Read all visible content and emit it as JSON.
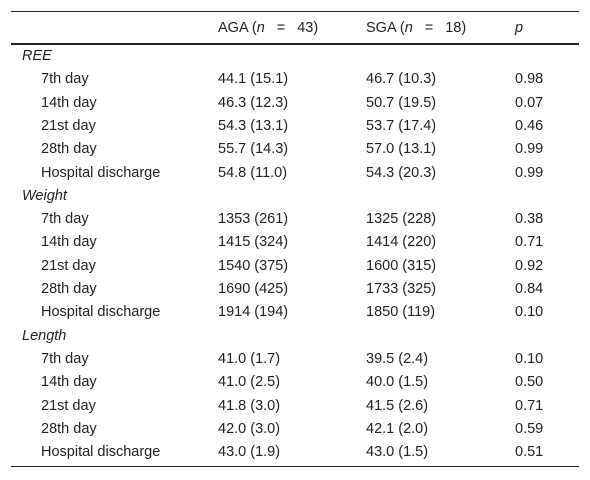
{
  "header": {
    "col1_prefix": "AGA (",
    "col1_n": "n",
    "col1_eq": "=",
    "col1_val": "43)",
    "col2_prefix": "SGA (",
    "col2_n": "n",
    "col2_eq": "=",
    "col2_val": "18)",
    "col3": "p"
  },
  "sections": [
    {
      "title": "REE",
      "rows": [
        {
          "label": "7th day",
          "aga": "44.1 (15.1)",
          "sga": "46.7 (10.3)",
          "p": "0.98"
        },
        {
          "label": "14th day",
          "aga": "46.3 (12.3)",
          "sga": "50.7 (19.5)",
          "p": "0.07"
        },
        {
          "label": "21st day",
          "aga": "54.3 (13.1)",
          "sga": "53.7 (17.4)",
          "p": "0.46"
        },
        {
          "label": "28th day",
          "aga": "55.7 (14.3)",
          "sga": "57.0 (13.1)",
          "p": "0.99"
        },
        {
          "label": "Hospital discharge",
          "aga": "54.8 (11.0)",
          "sga": "54.3 (20.3)",
          "p": "0.99"
        }
      ]
    },
    {
      "title": "Weight",
      "rows": [
        {
          "label": "7th day",
          "aga": "1353 (261)",
          "sga": "1325 (228)",
          "p": "0.38"
        },
        {
          "label": "14th day",
          "aga": "1415 (324)",
          "sga": "1414 (220)",
          "p": "0.71"
        },
        {
          "label": "21st day",
          "aga": "1540 (375)",
          "sga": "1600 (315)",
          "p": "0.92"
        },
        {
          "label": "28th day",
          "aga": "1690 (425)",
          "sga": "1733 (325)",
          "p": "0.84"
        },
        {
          "label": "Hospital discharge",
          "aga": "1914 (194)",
          "sga": "1850 (119)",
          "p": "0.10"
        }
      ]
    },
    {
      "title": "Length",
      "rows": [
        {
          "label": "7th day",
          "aga": "41.0 (1.7)",
          "sga": "39.5 (2.4)",
          "p": "0.10"
        },
        {
          "label": "14th day",
          "aga": "41.0 (2.5)",
          "sga": "40.0 (1.5)",
          "p": "0.50"
        },
        {
          "label": "21st day",
          "aga": "41.8 (3.0)",
          "sga": "41.5 (2.6)",
          "p": "0.71"
        },
        {
          "label": "28th day",
          "aga": "42.0 (3.0)",
          "sga": "42.1 (2.0)",
          "p": "0.59"
        },
        {
          "label": "Hospital discharge",
          "aga": "43.0 (1.9)",
          "sga": "43.0 (1.5)",
          "p": "0.51"
        }
      ]
    }
  ]
}
